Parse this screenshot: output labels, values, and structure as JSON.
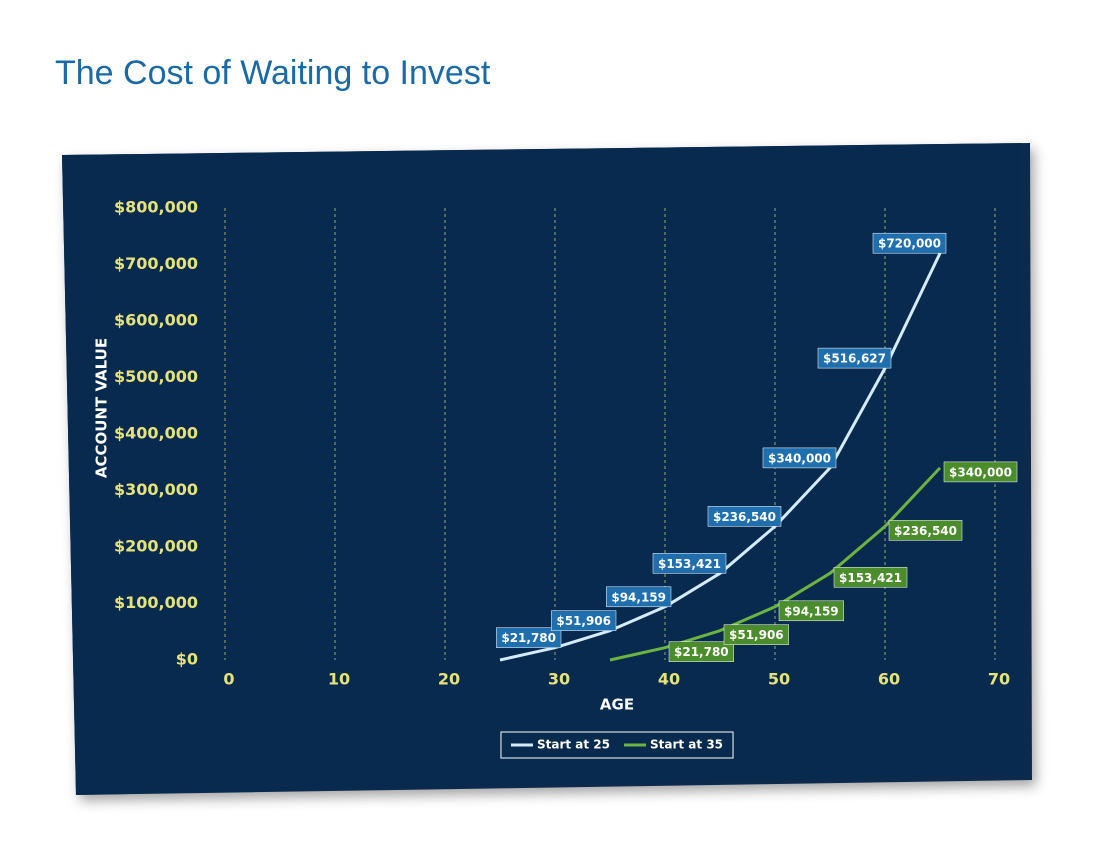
{
  "chart_data": {
    "type": "line",
    "title": "The Cost of Waiting to Invest",
    "x_label": "AGE",
    "y_label": "ACCOUNT VALUE",
    "xlim": [
      0,
      70
    ],
    "xticks": [
      0,
      10,
      20,
      30,
      40,
      50,
      60,
      70
    ],
    "ylim": [
      0,
      800000
    ],
    "yticks": [
      {
        "value": 0,
        "label": "$0"
      },
      {
        "value": 100000,
        "label": "$100,000"
      },
      {
        "value": 200000,
        "label": "$200,000"
      },
      {
        "value": 300000,
        "label": "$300,000"
      },
      {
        "value": 400000,
        "label": "$400,000"
      },
      {
        "value": 500000,
        "label": "$500,000"
      },
      {
        "value": 600000,
        "label": "$600,000"
      },
      {
        "value": 700000,
        "label": "$700,000"
      },
      {
        "value": 800000,
        "label": "$800,000"
      }
    ],
    "grid": true,
    "legend": "bottom",
    "series": [
      {
        "name": "Start at 25",
        "color": "#d4ebf8",
        "label_color": "#1f6fae",
        "x": [
          25,
          30,
          35,
          40,
          45,
          50,
          55,
          60,
          65
        ],
        "values": [
          0,
          21780,
          51906,
          94159,
          153421,
          236540,
          340000,
          516627,
          720000
        ],
        "value_labels": [
          null,
          "$21,780",
          "$51,906",
          "$94,159",
          "$153,421",
          "$236,540",
          "$340,000",
          "$516,627",
          "$720,000"
        ]
      },
      {
        "name": "Start at 35",
        "color": "#6cb33f",
        "label_color": "#4b8c2c",
        "x": [
          35,
          40,
          45,
          50,
          55,
          60,
          65
        ],
        "values": [
          0,
          21780,
          51906,
          94159,
          153421,
          236540,
          340000
        ],
        "value_labels": [
          null,
          "$21,780",
          "$51,906",
          "$94,159",
          "$153,421",
          "$236,540",
          "$340,000"
        ]
      }
    ]
  }
}
